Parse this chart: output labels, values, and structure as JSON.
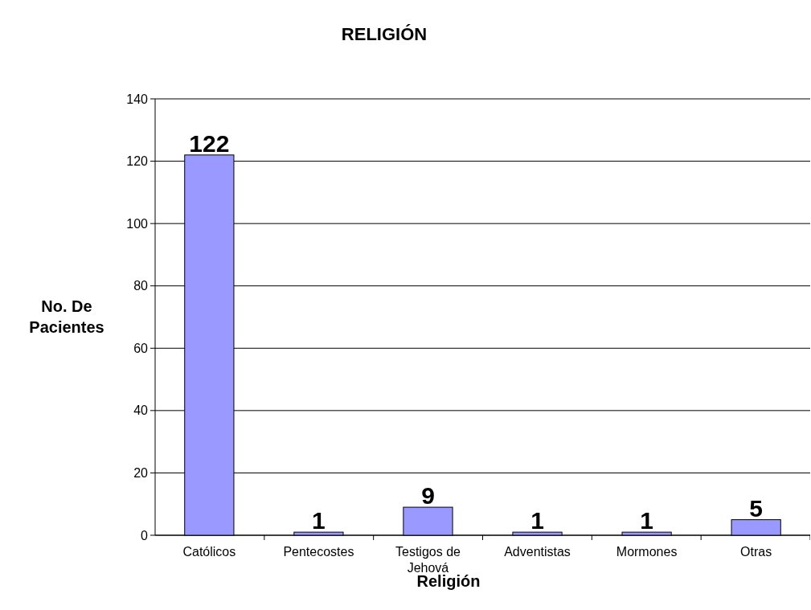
{
  "chart_data": {
    "type": "bar",
    "title": "RELIGIÓN",
    "xlabel": "Religión",
    "ylabel": "No. De Pacientes",
    "categories": [
      "Católicos",
      "Pentecostes",
      "Testigos de Jehová",
      "Adventistas",
      "Mormones",
      "Otras"
    ],
    "values": [
      122,
      1,
      9,
      1,
      1,
      5
    ],
    "color": "#9999ff",
    "ylim": [
      0,
      140
    ],
    "yticks": [
      0,
      20,
      40,
      60,
      80,
      100,
      120,
      140
    ],
    "grid": "y",
    "data_labels": true
  }
}
